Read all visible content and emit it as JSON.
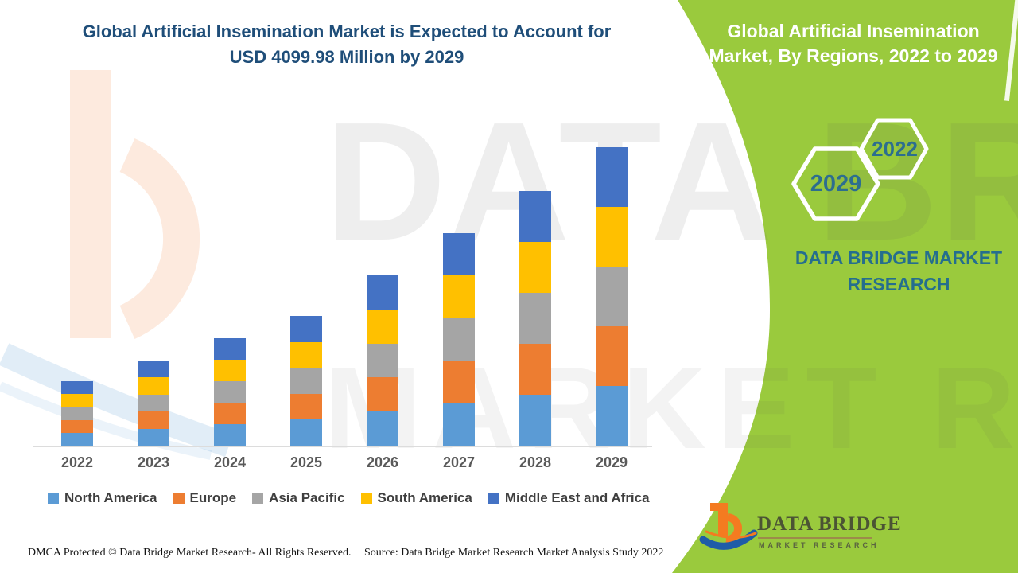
{
  "header": {
    "title_line1": "Global Artificial Insemination Market is Expected to Account for",
    "title_line2": "USD 4099.98 Million by 2029",
    "title_color": "#1f4e79"
  },
  "side_panel": {
    "title": "Global Artificial Insemination Market, By Regions, 2022 to 2029",
    "background_color": "#9aca3d",
    "text_color": "#256e8e",
    "hexagons": [
      {
        "label": "2029"
      },
      {
        "label": "2022"
      }
    ],
    "brand_text": "DATA BRIDGE MARKET RESEARCH"
  },
  "chart_data": {
    "type": "bar",
    "stacked": true,
    "title": "Global Artificial Insemination Market is Expected to Account for USD 4099.98 Million by 2029",
    "unit": "USD Million",
    "xlabel": "",
    "ylabel": "",
    "grid": false,
    "legend_position": "bottom",
    "categories": [
      "2022",
      "2023",
      "2024",
      "2025",
      "2026",
      "2027",
      "2028",
      "2029"
    ],
    "series": [
      {
        "name": "North America",
        "color": "#5B9BD5",
        "values": [
          177,
          234,
          295,
          356,
          468,
          584,
          700,
          820
        ]
      },
      {
        "name": "Europe",
        "color": "#ED7D31",
        "values": [
          177,
          234,
          295,
          356,
          468,
          584,
          700,
          820
        ]
      },
      {
        "name": "Asia Pacific",
        "color": "#A5A5A5",
        "values": [
          177,
          234,
          295,
          356,
          468,
          584,
          700,
          820
        ]
      },
      {
        "name": "South America",
        "color": "#FFC000",
        "values": [
          177,
          234,
          295,
          356,
          468,
          584,
          700,
          820
        ]
      },
      {
        "name": "Middle East and Africa",
        "color": "#4472C4",
        "values": [
          177,
          234,
          295,
          356,
          468,
          584,
          700,
          820
        ]
      }
    ],
    "totals_estimated_musd": [
      885,
      1170,
      1475,
      1780,
      2340,
      2920,
      3500,
      4099.98
    ],
    "highlighted_value": "USD 4099.98 Million by 2029"
  },
  "watermark": {
    "line1": "DATA BRIDGE",
    "line2": "MARKET RESEARCH"
  },
  "logo": {
    "title": "DATA BRIDGE",
    "subtitle": "MARKET RESEARCH",
    "orange": "#f47b20",
    "blue": "#1f5ca8"
  },
  "footer": {
    "dmca": "DMCA Protected © Data Bridge Market Research- All Rights Reserved.",
    "source": "Source: Data Bridge Market Research Market Analysis Study 2022"
  }
}
